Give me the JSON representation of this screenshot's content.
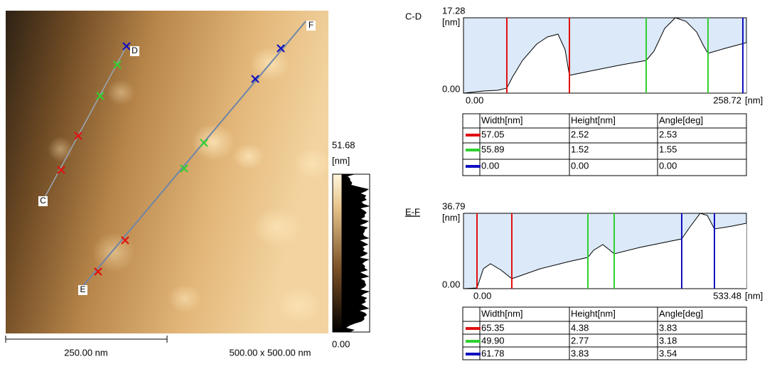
{
  "image": {
    "markers": [
      "C",
      "D",
      "E",
      "F"
    ],
    "scale_bar": "250.00 nm",
    "size": "500.00 x 500.00 nm",
    "colorbar": {
      "max": "51.68",
      "unit": "[nm]",
      "min": "0.00"
    }
  },
  "profiles": [
    {
      "name": "C-D",
      "y_max": "17.28",
      "y_unit": "[nm]",
      "y_min": "0.00",
      "x_min": "0.00",
      "x_max": "258.72",
      "x_unit": "[nm]",
      "table": {
        "columns": [
          "Width[nm]",
          "Height[nm]",
          "Angle[deg]"
        ],
        "rows": [
          [
            "57.05",
            "2.52",
            "2.53"
          ],
          [
            "55.89",
            "1.52",
            "1.55"
          ],
          [
            "0.00",
            "0.00",
            "0.00"
          ]
        ]
      }
    },
    {
      "name": "E-F",
      "y_max": "36.79",
      "y_unit": "[nm]",
      "y_min": "0.00",
      "x_min": "0.00",
      "x_max": "533.48",
      "x_unit": "[nm]",
      "table": {
        "columns": [
          "Width[nm]",
          "Height[nm]",
          "Angle[deg]"
        ],
        "rows": [
          [
            "65.35",
            "4.38",
            "3.83"
          ],
          [
            "49.90",
            "2.77",
            "3.18"
          ],
          [
            "61.78",
            "3.83",
            "3.54"
          ]
        ]
      }
    }
  ]
}
